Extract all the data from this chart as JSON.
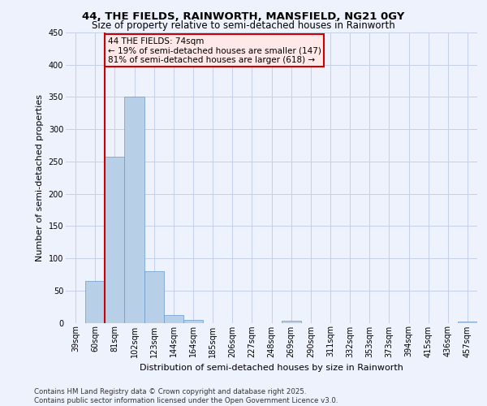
{
  "title1": "44, THE FIELDS, RAINWORTH, MANSFIELD, NG21 0GY",
  "title2": "Size of property relative to semi-detached houses in Rainworth",
  "xlabel": "Distribution of semi-detached houses by size in Rainworth",
  "ylabel": "Number of semi-detached properties",
  "footer1": "Contains HM Land Registry data © Crown copyright and database right 2025.",
  "footer2": "Contains public sector information licensed under the Open Government Licence v3.0.",
  "bin_labels": [
    "39sqm",
    "60sqm",
    "81sqm",
    "102sqm",
    "123sqm",
    "144sqm",
    "164sqm",
    "185sqm",
    "206sqm",
    "227sqm",
    "248sqm",
    "269sqm",
    "290sqm",
    "311sqm",
    "332sqm",
    "353sqm",
    "373sqm",
    "394sqm",
    "415sqm",
    "436sqm",
    "457sqm"
  ],
  "bar_values": [
    0,
    65,
    257,
    350,
    80,
    12,
    5,
    0,
    0,
    0,
    0,
    3,
    0,
    0,
    0,
    0,
    0,
    0,
    0,
    0,
    2
  ],
  "bar_color": "#b8cfe8",
  "bar_edge_color": "#6699cc",
  "vline_color": "#cc0000",
  "vline_bin_index": 2,
  "property_label": "44 THE FIELDS: 74sqm",
  "pct_smaller": 19,
  "count_smaller": 147,
  "pct_larger": 81,
  "count_larger": 618,
  "ylim": [
    0,
    450
  ],
  "yticks": [
    0,
    50,
    100,
    150,
    200,
    250,
    300,
    350,
    400,
    450
  ],
  "background_color": "#eef2fc",
  "grid_color": "#c5cfe8",
  "ann_box_face": "#ffe8e8",
  "ann_box_edge": "#cc0000",
  "title1_fontsize": 9.5,
  "title2_fontsize": 8.5,
  "ylabel_fontsize": 8,
  "xlabel_fontsize": 8,
  "tick_fontsize": 7,
  "ann_fontsize": 7.5,
  "footer_fontsize": 6.2
}
